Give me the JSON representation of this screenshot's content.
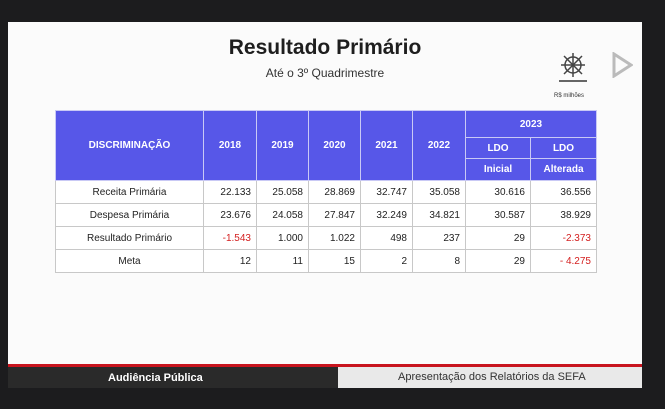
{
  "header": {
    "title": "Resultado Primário",
    "subtitle": "Até o 3º Quadrimestre",
    "unit": "R$ milhões"
  },
  "table": {
    "columns": [
      "DISCRIMINAÇÃO",
      "2018",
      "2019",
      "2020",
      "2021",
      "2022"
    ],
    "group": "2023",
    "subcolumns": [
      [
        "LDO",
        "Inicial"
      ],
      [
        "LDO",
        "Alterada"
      ]
    ],
    "rows": [
      [
        "Receita Primária",
        "22.133",
        "25.058",
        "28.869",
        "32.747",
        "35.058",
        "30.616",
        "36.556"
      ],
      [
        "Despesa Primária",
        "23.676",
        "24.058",
        "27.847",
        "32.249",
        "34.821",
        "30.587",
        "38.929"
      ],
      [
        "Resultado Primário",
        "-1.543",
        "1.000",
        "1.022",
        "498",
        "237",
        "29",
        "-2.373"
      ],
      [
        "Meta",
        "12",
        "11",
        "15",
        "2",
        "8",
        "29",
        "- 4.275"
      ]
    ]
  },
  "footer": {
    "left": "Audiência Pública",
    "right": "Apresentação dos Relatórios da SEFA"
  }
}
